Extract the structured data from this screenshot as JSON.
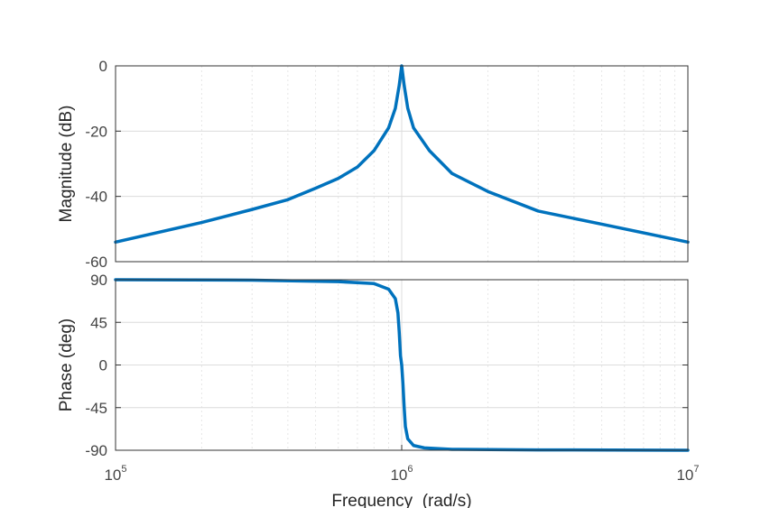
{
  "chart_data": [
    {
      "type": "line",
      "panel": "magnitude",
      "ylabel": "Magnitude (dB)",
      "xscale": "log",
      "xlim": [
        100000,
        10000000
      ],
      "ylim": [
        -60,
        0
      ],
      "yticks": [
        0,
        -20,
        -40,
        -60
      ],
      "ytick_labels": [
        "0",
        "-20",
        "-40",
        "-60"
      ],
      "grid": true,
      "series": [
        {
          "color": "#0072BD",
          "x": [
            100000,
            200000,
            300000,
            400000,
            500000,
            600000,
            700000,
            800000,
            900000,
            950000,
            980000,
            1000000,
            1020000,
            1050000,
            1100000,
            1250000,
            1500000,
            2000000,
            3000000,
            5000000,
            10000000
          ],
          "y": [
            -54,
            -48,
            -44,
            -41,
            -37.5,
            -34.5,
            -31,
            -26,
            -19,
            -13,
            -6,
            0,
            -6,
            -13,
            -19,
            -26,
            -33,
            -38.5,
            -44.5,
            -48.5,
            -54
          ]
        }
      ]
    },
    {
      "type": "line",
      "panel": "phase",
      "ylabel": "Phase (deg)",
      "xlabel": "Frequency  (rad/s)",
      "xscale": "log",
      "xlim": [
        100000,
        10000000
      ],
      "ylim": [
        -90,
        90
      ],
      "xticks": [
        100000,
        1000000,
        10000000
      ],
      "xtick_labels": [
        {
          "base": "10",
          "exp": "5"
        },
        {
          "base": "10",
          "exp": "6"
        },
        {
          "base": "10",
          "exp": "7"
        }
      ],
      "yticks": [
        90,
        45,
        0,
        -45,
        -90
      ],
      "ytick_labels": [
        "90",
        "45",
        "0",
        "-45",
        "-90"
      ],
      "grid": true,
      "series": [
        {
          "color": "#0072BD",
          "x": [
            100000,
            300000,
            600000,
            800000,
            900000,
            950000,
            970000,
            980000,
            990000,
            1000000,
            1010000,
            1020000,
            1030000,
            1050000,
            1100000,
            1200000,
            1500000,
            3000000,
            10000000
          ],
          "y": [
            90,
            89.5,
            88,
            86,
            80,
            70,
            55,
            35,
            10,
            0,
            -20,
            -45,
            -65,
            -78,
            -85,
            -87.5,
            -89,
            -89.6,
            -90
          ]
        }
      ]
    }
  ]
}
